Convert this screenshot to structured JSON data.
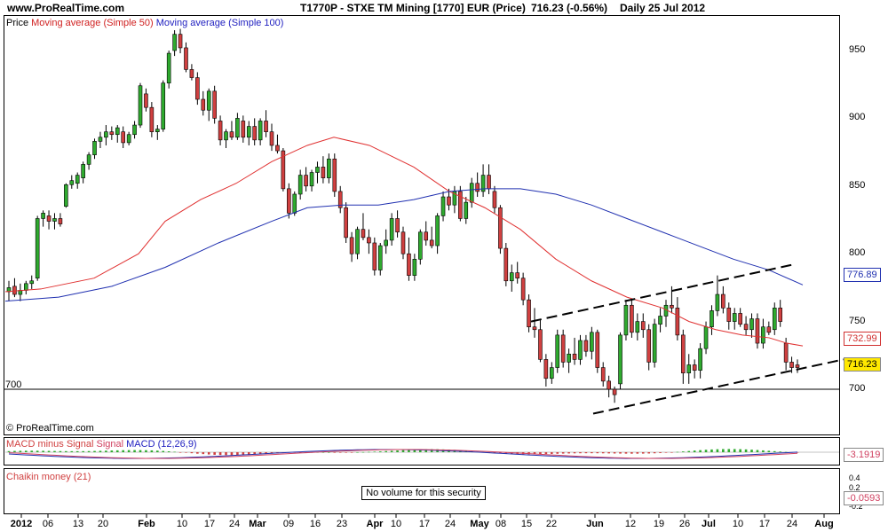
{
  "header": {
    "site": "www.ProRealTime.com",
    "instrument": "T1770P - STXE TM Mining [1770] EUR (Price)",
    "last_price": "716.23 (-0.56%)",
    "period": "Daily  25 Jul 2012"
  },
  "colors": {
    "bullish": "#2faa2f",
    "bearish": "#d04040",
    "ma50": "#e03030",
    "ma100": "#2030b0",
    "trendline": "#000000",
    "macd_line": "#2030b0",
    "signal_line": "#d04060",
    "histogram": "#2faa2f"
  },
  "legend": {
    "price": "Price",
    "ma50": "Moving average (Simple 50)",
    "ma100": "Moving average (Simple 100)",
    "macd": "MACD minus Signal",
    "macd_signal": "Signal",
    "macd_main": "MACD (12,26,9)",
    "chaikin": "Chaikin money (21)"
  },
  "copyright": "© ProRealTime.com",
  "horizontal_level_label": "700",
  "no_volume_text": "No volume for this security",
  "chart_data": {
    "type": "candlestick",
    "x_axis_labels": [
      {
        "text": "2012",
        "month": true
      },
      {
        "text": "06",
        "month": false
      },
      {
        "text": "13",
        "month": false
      },
      {
        "text": "20",
        "month": false
      },
      {
        "text": "Feb",
        "month": true
      },
      {
        "text": "10",
        "month": false
      },
      {
        "text": "17",
        "month": false
      },
      {
        "text": "24",
        "month": false
      },
      {
        "text": "Mar",
        "month": true
      },
      {
        "text": "09",
        "month": false
      },
      {
        "text": "16",
        "month": false
      },
      {
        "text": "23",
        "month": false
      },
      {
        "text": "Apr",
        "month": true
      },
      {
        "text": "10",
        "month": false
      },
      {
        "text": "17",
        "month": false
      },
      {
        "text": "24",
        "month": false
      },
      {
        "text": "May",
        "month": true
      },
      {
        "text": "08",
        "month": false
      },
      {
        "text": "15",
        "month": false
      },
      {
        "text": "22",
        "month": false
      },
      {
        "text": "Jun",
        "month": true
      },
      {
        "text": "12",
        "month": false
      },
      {
        "text": "19",
        "month": false
      },
      {
        "text": "26",
        "month": false
      },
      {
        "text": "Jul",
        "month": true
      },
      {
        "text": "10",
        "month": false
      },
      {
        "text": "17",
        "month": false
      },
      {
        "text": "24",
        "month": false
      },
      {
        "text": "Aug",
        "month": true
      }
    ],
    "price_axis": {
      "ticks": [
        "950",
        "900",
        "850",
        "800",
        "750",
        "700"
      ],
      "ylim": [
        670,
        975
      ],
      "horizontal_level": 700
    },
    "last_values": {
      "ma100": "776.89",
      "ma50": "732.99",
      "price": "716.23"
    },
    "macd_axis": {
      "ticks": [],
      "last_value": "-3.1919"
    },
    "chaikin_axis": {
      "ticks": [
        "0.4",
        "0.2",
        "0",
        "-0.2"
      ],
      "last_value": "-0.0593"
    },
    "candles": [
      {
        "o": 772,
        "h": 780,
        "l": 765,
        "c": 775
      },
      {
        "o": 776,
        "h": 782,
        "l": 768,
        "c": 770
      },
      {
        "o": 770,
        "h": 778,
        "l": 765,
        "c": 773
      },
      {
        "o": 773,
        "h": 780,
        "l": 770,
        "c": 778
      },
      {
        "o": 778,
        "h": 784,
        "l": 774,
        "c": 780
      },
      {
        "o": 782,
        "h": 828,
        "l": 780,
        "c": 826
      },
      {
        "o": 826,
        "h": 832,
        "l": 820,
        "c": 830
      },
      {
        "o": 828,
        "h": 832,
        "l": 818,
        "c": 824
      },
      {
        "o": 824,
        "h": 830,
        "l": 818,
        "c": 826
      },
      {
        "o": 826,
        "h": 830,
        "l": 820,
        "c": 822
      },
      {
        "o": 835,
        "h": 852,
        "l": 834,
        "c": 851
      },
      {
        "o": 851,
        "h": 858,
        "l": 848,
        "c": 854
      },
      {
        "o": 852,
        "h": 860,
        "l": 848,
        "c": 858
      },
      {
        "o": 856,
        "h": 868,
        "l": 852,
        "c": 866
      },
      {
        "o": 866,
        "h": 875,
        "l": 862,
        "c": 873
      },
      {
        "o": 873,
        "h": 885,
        "l": 870,
        "c": 883
      },
      {
        "o": 883,
        "h": 890,
        "l": 878,
        "c": 886
      },
      {
        "o": 886,
        "h": 895,
        "l": 880,
        "c": 890
      },
      {
        "o": 890,
        "h": 894,
        "l": 884,
        "c": 888
      },
      {
        "o": 888,
        "h": 895,
        "l": 882,
        "c": 893
      },
      {
        "o": 890,
        "h": 894,
        "l": 878,
        "c": 882
      },
      {
        "o": 882,
        "h": 890,
        "l": 880,
        "c": 888
      },
      {
        "o": 888,
        "h": 898,
        "l": 885,
        "c": 895
      },
      {
        "o": 895,
        "h": 926,
        "l": 893,
        "c": 924
      },
      {
        "o": 918,
        "h": 922,
        "l": 905,
        "c": 908
      },
      {
        "o": 908,
        "h": 912,
        "l": 886,
        "c": 890
      },
      {
        "o": 890,
        "h": 895,
        "l": 884,
        "c": 892
      },
      {
        "o": 892,
        "h": 928,
        "l": 890,
        "c": 926
      },
      {
        "o": 926,
        "h": 950,
        "l": 922,
        "c": 948
      },
      {
        "o": 950,
        "h": 965,
        "l": 946,
        "c": 962
      },
      {
        "o": 962,
        "h": 966,
        "l": 948,
        "c": 952
      },
      {
        "o": 952,
        "h": 956,
        "l": 934,
        "c": 936
      },
      {
        "o": 936,
        "h": 940,
        "l": 928,
        "c": 930
      },
      {
        "o": 930,
        "h": 934,
        "l": 910,
        "c": 914
      },
      {
        "o": 914,
        "h": 920,
        "l": 902,
        "c": 906
      },
      {
        "o": 906,
        "h": 922,
        "l": 898,
        "c": 920
      },
      {
        "o": 920,
        "h": 924,
        "l": 896,
        "c": 900
      },
      {
        "o": 898,
        "h": 902,
        "l": 880,
        "c": 884
      },
      {
        "o": 884,
        "h": 892,
        "l": 878,
        "c": 890
      },
      {
        "o": 890,
        "h": 898,
        "l": 884,
        "c": 886
      },
      {
        "o": 886,
        "h": 904,
        "l": 884,
        "c": 900
      },
      {
        "o": 898,
        "h": 902,
        "l": 882,
        "c": 886
      },
      {
        "o": 886,
        "h": 898,
        "l": 880,
        "c": 894
      },
      {
        "o": 894,
        "h": 900,
        "l": 880,
        "c": 884
      },
      {
        "o": 884,
        "h": 900,
        "l": 880,
        "c": 898
      },
      {
        "o": 898,
        "h": 906,
        "l": 886,
        "c": 890
      },
      {
        "o": 890,
        "h": 896,
        "l": 876,
        "c": 880
      },
      {
        "o": 880,
        "h": 888,
        "l": 874,
        "c": 876
      },
      {
        "o": 876,
        "h": 878,
        "l": 846,
        "c": 848
      },
      {
        "o": 848,
        "h": 852,
        "l": 826,
        "c": 830
      },
      {
        "o": 830,
        "h": 846,
        "l": 828,
        "c": 844
      },
      {
        "o": 844,
        "h": 862,
        "l": 840,
        "c": 858
      },
      {
        "o": 858,
        "h": 864,
        "l": 846,
        "c": 850
      },
      {
        "o": 850,
        "h": 862,
        "l": 846,
        "c": 860
      },
      {
        "o": 860,
        "h": 868,
        "l": 852,
        "c": 864
      },
      {
        "o": 864,
        "h": 872,
        "l": 852,
        "c": 856
      },
      {
        "o": 856,
        "h": 874,
        "l": 852,
        "c": 870
      },
      {
        "o": 870,
        "h": 874,
        "l": 842,
        "c": 846
      },
      {
        "o": 846,
        "h": 850,
        "l": 830,
        "c": 834
      },
      {
        "o": 834,
        "h": 838,
        "l": 808,
        "c": 812
      },
      {
        "o": 812,
        "h": 816,
        "l": 794,
        "c": 800
      },
      {
        "o": 800,
        "h": 820,
        "l": 796,
        "c": 818
      },
      {
        "o": 818,
        "h": 830,
        "l": 810,
        "c": 812
      },
      {
        "o": 812,
        "h": 818,
        "l": 800,
        "c": 808
      },
      {
        "o": 808,
        "h": 812,
        "l": 784,
        "c": 788
      },
      {
        "o": 788,
        "h": 808,
        "l": 784,
        "c": 806
      },
      {
        "o": 806,
        "h": 818,
        "l": 800,
        "c": 810
      },
      {
        "o": 810,
        "h": 830,
        "l": 806,
        "c": 826
      },
      {
        "o": 826,
        "h": 832,
        "l": 812,
        "c": 816
      },
      {
        "o": 816,
        "h": 820,
        "l": 796,
        "c": 800
      },
      {
        "o": 800,
        "h": 812,
        "l": 780,
        "c": 784
      },
      {
        "o": 784,
        "h": 800,
        "l": 780,
        "c": 796
      },
      {
        "o": 796,
        "h": 818,
        "l": 792,
        "c": 816
      },
      {
        "o": 816,
        "h": 824,
        "l": 806,
        "c": 810
      },
      {
        "o": 810,
        "h": 820,
        "l": 804,
        "c": 806
      },
      {
        "o": 806,
        "h": 830,
        "l": 800,
        "c": 828
      },
      {
        "o": 828,
        "h": 846,
        "l": 824,
        "c": 842
      },
      {
        "o": 842,
        "h": 848,
        "l": 832,
        "c": 836
      },
      {
        "o": 836,
        "h": 850,
        "l": 830,
        "c": 846
      },
      {
        "o": 846,
        "h": 850,
        "l": 824,
        "c": 826
      },
      {
        "o": 826,
        "h": 842,
        "l": 822,
        "c": 838
      },
      {
        "o": 838,
        "h": 856,
        "l": 834,
        "c": 852
      },
      {
        "o": 852,
        "h": 860,
        "l": 842,
        "c": 846
      },
      {
        "o": 846,
        "h": 866,
        "l": 842,
        "c": 858
      },
      {
        "o": 858,
        "h": 866,
        "l": 844,
        "c": 848
      },
      {
        "o": 846,
        "h": 850,
        "l": 830,
        "c": 834
      },
      {
        "o": 834,
        "h": 836,
        "l": 800,
        "c": 804
      },
      {
        "o": 804,
        "h": 808,
        "l": 776,
        "c": 780
      },
      {
        "o": 780,
        "h": 792,
        "l": 772,
        "c": 786
      },
      {
        "o": 786,
        "h": 794,
        "l": 778,
        "c": 782
      },
      {
        "o": 782,
        "h": 786,
        "l": 762,
        "c": 766
      },
      {
        "o": 766,
        "h": 770,
        "l": 742,
        "c": 746
      },
      {
        "o": 746,
        "h": 760,
        "l": 738,
        "c": 744
      },
      {
        "o": 744,
        "h": 752,
        "l": 720,
        "c": 722
      },
      {
        "o": 722,
        "h": 726,
        "l": 702,
        "c": 708
      },
      {
        "o": 708,
        "h": 720,
        "l": 704,
        "c": 716
      },
      {
        "o": 716,
        "h": 744,
        "l": 712,
        "c": 740
      },
      {
        "o": 740,
        "h": 744,
        "l": 716,
        "c": 720
      },
      {
        "o": 720,
        "h": 730,
        "l": 712,
        "c": 726
      },
      {
        "o": 726,
        "h": 738,
        "l": 718,
        "c": 722
      },
      {
        "o": 722,
        "h": 740,
        "l": 718,
        "c": 736
      },
      {
        "o": 736,
        "h": 740,
        "l": 724,
        "c": 728
      },
      {
        "o": 728,
        "h": 746,
        "l": 722,
        "c": 742
      },
      {
        "o": 742,
        "h": 744,
        "l": 712,
        "c": 716
      },
      {
        "o": 716,
        "h": 720,
        "l": 702,
        "c": 706
      },
      {
        "o": 706,
        "h": 710,
        "l": 694,
        "c": 700
      },
      {
        "o": 700,
        "h": 702,
        "l": 690,
        "c": 696
      },
      {
        "o": 704,
        "h": 742,
        "l": 700,
        "c": 740
      },
      {
        "o": 740,
        "h": 766,
        "l": 736,
        "c": 762
      },
      {
        "o": 762,
        "h": 766,
        "l": 738,
        "c": 742
      },
      {
        "o": 742,
        "h": 756,
        "l": 736,
        "c": 750
      },
      {
        "o": 750,
        "h": 756,
        "l": 738,
        "c": 744
      },
      {
        "o": 744,
        "h": 748,
        "l": 714,
        "c": 720
      },
      {
        "o": 720,
        "h": 752,
        "l": 716,
        "c": 748
      },
      {
        "o": 748,
        "h": 760,
        "l": 742,
        "c": 754
      },
      {
        "o": 754,
        "h": 766,
        "l": 746,
        "c": 762
      },
      {
        "o": 762,
        "h": 776,
        "l": 756,
        "c": 760
      },
      {
        "o": 760,
        "h": 768,
        "l": 736,
        "c": 740
      },
      {
        "o": 740,
        "h": 744,
        "l": 704,
        "c": 712
      },
      {
        "o": 712,
        "h": 726,
        "l": 704,
        "c": 718
      },
      {
        "o": 718,
        "h": 722,
        "l": 708,
        "c": 714
      },
      {
        "o": 714,
        "h": 734,
        "l": 708,
        "c": 730
      },
      {
        "o": 730,
        "h": 750,
        "l": 726,
        "c": 746
      },
      {
        "o": 746,
        "h": 762,
        "l": 740,
        "c": 758
      },
      {
        "o": 758,
        "h": 784,
        "l": 754,
        "c": 770
      },
      {
        "o": 770,
        "h": 776,
        "l": 756,
        "c": 760
      },
      {
        "o": 760,
        "h": 764,
        "l": 744,
        "c": 750
      },
      {
        "o": 750,
        "h": 760,
        "l": 744,
        "c": 756
      },
      {
        "o": 756,
        "h": 760,
        "l": 746,
        "c": 748
      },
      {
        "o": 748,
        "h": 754,
        "l": 740,
        "c": 744
      },
      {
        "o": 744,
        "h": 756,
        "l": 738,
        "c": 752
      },
      {
        "o": 752,
        "h": 756,
        "l": 730,
        "c": 734
      },
      {
        "o": 734,
        "h": 752,
        "l": 730,
        "c": 746
      },
      {
        "o": 746,
        "h": 750,
        "l": 740,
        "c": 742
      },
      {
        "o": 744,
        "h": 764,
        "l": 740,
        "c": 760
      },
      {
        "o": 760,
        "h": 766,
        "l": 746,
        "c": 750
      },
      {
        "o": 734,
        "h": 738,
        "l": 714,
        "c": 720
      },
      {
        "o": 720,
        "h": 724,
        "l": 712,
        "c": 716
      },
      {
        "o": 718,
        "h": 722,
        "l": 712,
        "c": 716
      }
    ],
    "ma50": [
      [
        0,
        772
      ],
      [
        40,
        774
      ],
      [
        100,
        782
      ],
      [
        150,
        800
      ],
      [
        180,
        824
      ],
      [
        220,
        840
      ],
      [
        260,
        852
      ],
      [
        300,
        868
      ],
      [
        340,
        880
      ],
      [
        370,
        886
      ],
      [
        410,
        880
      ],
      [
        460,
        864
      ],
      [
        500,
        846
      ],
      [
        540,
        834
      ],
      [
        580,
        818
      ],
      [
        620,
        796
      ],
      [
        660,
        780
      ],
      [
        700,
        768
      ],
      [
        740,
        760
      ],
      [
        770,
        750
      ],
      [
        800,
        744
      ],
      [
        830,
        740
      ],
      [
        860,
        738
      ],
      [
        880,
        734
      ],
      [
        898,
        732
      ]
    ],
    "ma100": [
      [
        0,
        765
      ],
      [
        60,
        768
      ],
      [
        120,
        776
      ],
      [
        180,
        790
      ],
      [
        240,
        808
      ],
      [
        300,
        824
      ],
      [
        340,
        834
      ],
      [
        380,
        836
      ],
      [
        420,
        836
      ],
      [
        460,
        840
      ],
      [
        500,
        846
      ],
      [
        540,
        848
      ],
      [
        580,
        848
      ],
      [
        620,
        844
      ],
      [
        660,
        836
      ],
      [
        700,
        826
      ],
      [
        740,
        816
      ],
      [
        780,
        806
      ],
      [
        820,
        796
      ],
      [
        860,
        788
      ],
      [
        898,
        777
      ]
    ],
    "trendlines": [
      {
        "from": [
          598,
          750
        ],
        "to": [
          893,
          792
        ]
      },
      {
        "from": [
          668,
          682
        ],
        "to": [
          950,
          722
        ]
      }
    ]
  }
}
